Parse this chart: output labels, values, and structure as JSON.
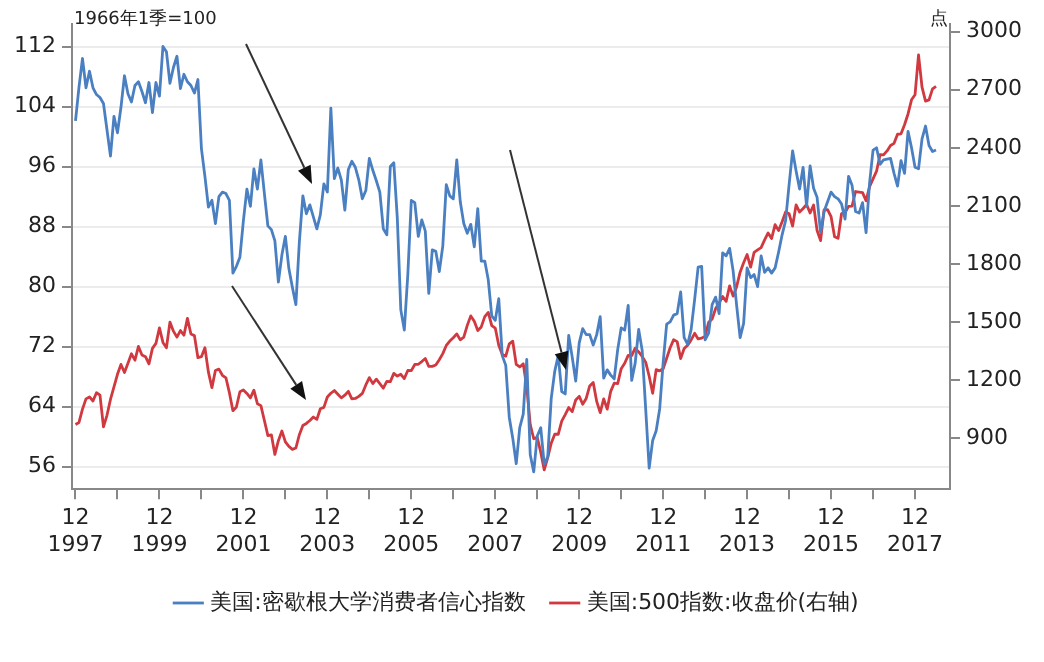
{
  "chart_data": {
    "type": "line",
    "ylabel": "1966年1季=100",
    "y2label": "点",
    "x": [
      "1997-12",
      "1998-01",
      "1998-02",
      "1998-03",
      "1998-04",
      "1998-05",
      "1998-06",
      "1998-07",
      "1998-08",
      "1998-09",
      "1998-10",
      "1998-11",
      "1998-12",
      "1999-01",
      "1999-02",
      "1999-03",
      "1999-04",
      "1999-05",
      "1999-06",
      "1999-07",
      "1999-08",
      "1999-09",
      "1999-10",
      "1999-11",
      "1999-12",
      "2000-01",
      "2000-02",
      "2000-03",
      "2000-04",
      "2000-05",
      "2000-06",
      "2000-07",
      "2000-08",
      "2000-09",
      "2000-10",
      "2000-11",
      "2000-12",
      "2001-01",
      "2001-02",
      "2001-03",
      "2001-04",
      "2001-05",
      "2001-06",
      "2001-07",
      "2001-08",
      "2001-09",
      "2001-10",
      "2001-11",
      "2001-12",
      "2002-01",
      "2002-02",
      "2002-03",
      "2002-04",
      "2002-05",
      "2002-06",
      "2002-07",
      "2002-08",
      "2002-09",
      "2002-10",
      "2002-11",
      "2002-12",
      "2003-01",
      "2003-02",
      "2003-03",
      "2003-04",
      "2003-05",
      "2003-06",
      "2003-07",
      "2003-08",
      "2003-09",
      "2003-10",
      "2003-11",
      "2003-12",
      "2004-01",
      "2004-02",
      "2004-03",
      "2004-04",
      "2004-05",
      "2004-06",
      "2004-07",
      "2004-08",
      "2004-09",
      "2004-10",
      "2004-11",
      "2004-12",
      "2005-01",
      "2005-02",
      "2005-03",
      "2005-04",
      "2005-05",
      "2005-06",
      "2005-07",
      "2005-08",
      "2005-09",
      "2005-10",
      "2005-11",
      "2005-12",
      "2006-01",
      "2006-02",
      "2006-03",
      "2006-04",
      "2006-05",
      "2006-06",
      "2006-07",
      "2006-08",
      "2006-09",
      "2006-10",
      "2006-11",
      "2006-12",
      "2007-01",
      "2007-02",
      "2007-03",
      "2007-04",
      "2007-05",
      "2007-06",
      "2007-07",
      "2007-08",
      "2007-09",
      "2007-10",
      "2007-11",
      "2007-12",
      "2008-01",
      "2008-02",
      "2008-03",
      "2008-04",
      "2008-05",
      "2008-06",
      "2008-07",
      "2008-08",
      "2008-09",
      "2008-10",
      "2008-11",
      "2008-12",
      "2009-01",
      "2009-02",
      "2009-03",
      "2009-04",
      "2009-05",
      "2009-06",
      "2009-07",
      "2009-08",
      "2009-09",
      "2009-10",
      "2009-11",
      "2009-12",
      "2010-01",
      "2010-02",
      "2010-03",
      "2010-04",
      "2010-05",
      "2010-06",
      "2010-07",
      "2010-08",
      "2010-09",
      "2010-10",
      "2010-11",
      "2010-12",
      "2011-01",
      "2011-02",
      "2011-03",
      "2011-04",
      "2011-05",
      "2011-06",
      "2011-07",
      "2011-08",
      "2011-09",
      "2011-10",
      "2011-11",
      "2011-12",
      "2012-01",
      "2012-02",
      "2012-03",
      "2012-04",
      "2012-05",
      "2012-06",
      "2012-07",
      "2012-08",
      "2012-09",
      "2012-10",
      "2012-11",
      "2012-12",
      "2013-01",
      "2013-02",
      "2013-03",
      "2013-04",
      "2013-05",
      "2013-06",
      "2013-07",
      "2013-08",
      "2013-09",
      "2013-10",
      "2013-11",
      "2013-12",
      "2014-01",
      "2014-02",
      "2014-03",
      "2014-04",
      "2014-05",
      "2014-06",
      "2014-07",
      "2014-08",
      "2014-09",
      "2014-10",
      "2014-11",
      "2014-12",
      "2015-01",
      "2015-02",
      "2015-03",
      "2015-04",
      "2015-05",
      "2015-06",
      "2015-07",
      "2015-08",
      "2015-09",
      "2015-10",
      "2015-11",
      "2015-12",
      "2016-01",
      "2016-02",
      "2016-03",
      "2016-04",
      "2016-05",
      "2016-06",
      "2016-07",
      "2016-08",
      "2016-09",
      "2016-10",
      "2016-11",
      "2016-12",
      "2017-01",
      "2017-02",
      "2017-03",
      "2017-04",
      "2017-05",
      "2017-06",
      "2017-07",
      "2017-08",
      "2017-09",
      "2017-10",
      "2017-11",
      "2017-12",
      "2018-01",
      "2018-02",
      "2018-03",
      "2018-04",
      "2018-05",
      "2018-06"
    ],
    "series": [
      {
        "name": "美国:密歇根大学消费者信心指数",
        "color": "#4a7fc1",
        "values": [
          102.1,
          106.6,
          110.4,
          106.5,
          108.7,
          106.5,
          105.6,
          105.2,
          104.4,
          100.9,
          97.4,
          102.7,
          100.5,
          103.9,
          108.1,
          105.7,
          104.6,
          106.8,
          107.3,
          106.0,
          104.5,
          107.2,
          103.2,
          107.2,
          105.4,
          112.0,
          111.3,
          107.1,
          109.2,
          110.7,
          106.4,
          108.3,
          107.3,
          106.8,
          105.8,
          107.6,
          98.4,
          94.7,
          90.6,
          91.5,
          88.4,
          92.0,
          92.6,
          92.4,
          91.5,
          81.8,
          82.7,
          83.9,
          88.8,
          93.0,
          90.7,
          95.7,
          93.0,
          96.9,
          92.4,
          88.1,
          87.6,
          86.1,
          80.6,
          84.2,
          86.7,
          82.4,
          79.9,
          77.6,
          86.0,
          92.1,
          89.7,
          90.9,
          89.3,
          87.7,
          89.6,
          93.7,
          92.6,
          103.8,
          94.4,
          95.8,
          94.2,
          90.2,
          95.6,
          96.7,
          95.9,
          94.2,
          91.7,
          92.8,
          97.1,
          95.5,
          94.1,
          92.6,
          87.7,
          86.9,
          96.0,
          96.5,
          89.1,
          76.9,
          74.2,
          81.6,
          91.5,
          91.2,
          86.7,
          88.9,
          87.4,
          79.1,
          84.9,
          84.7,
          82.0,
          85.4,
          93.6,
          92.1,
          91.7,
          96.9,
          91.3,
          88.4,
          87.1,
          88.3,
          85.3,
          90.4,
          83.4,
          83.4,
          80.9,
          76.1,
          75.5,
          78.4,
          70.8,
          69.5,
          62.6,
          59.8,
          56.4,
          61.2,
          63.0,
          70.3,
          57.6,
          55.3,
          60.1,
          61.2,
          56.3,
          57.3,
          65.1,
          68.7,
          70.8,
          66.0,
          65.7,
          73.5,
          70.6,
          67.4,
          72.5,
          74.4,
          73.6,
          73.6,
          72.2,
          73.6,
          76.0,
          67.8,
          68.9,
          68.2,
          67.7,
          71.6,
          74.5,
          74.2,
          77.5,
          67.5,
          69.8,
          74.3,
          71.5,
          63.7,
          55.8,
          59.5,
          60.8,
          63.7,
          69.9,
          75.0,
          75.3,
          76.2,
          76.4,
          79.3,
          73.2,
          72.3,
          74.3,
          78.3,
          82.6,
          82.7,
          72.9,
          73.8,
          77.6,
          78.6,
          76.4,
          84.5,
          84.1,
          85.1,
          82.1,
          77.5,
          73.2,
          75.1,
          82.5,
          81.2,
          81.6,
          80.0,
          84.1,
          81.9,
          82.5,
          81.8,
          82.5,
          84.6,
          86.9,
          88.8,
          93.6,
          98.1,
          95.4,
          93.0,
          95.9,
          90.7,
          96.1,
          93.1,
          91.9,
          87.2,
          90.0,
          91.3,
          92.6,
          92.0,
          91.7,
          91.0,
          89.0,
          94.7,
          93.5,
          90.0,
          89.8,
          91.2,
          87.2,
          93.8,
          98.2,
          98.5,
          96.3,
          96.9,
          97.0,
          97.1,
          95.1,
          93.4,
          96.8,
          95.1,
          100.7,
          98.5,
          95.9,
          95.7,
          99.7,
          101.4,
          98.8,
          98.0,
          98.2
        ]
      },
      {
        "name": "美国:500指数:收盘价(右轴)",
        "color": "#d0393f",
        "axis": "y2",
        "values": [
          970,
          980,
          1049,
          1102,
          1112,
          1091,
          1134,
          1121,
          957,
          1017,
          1099,
          1164,
          1229,
          1280,
          1238,
          1286,
          1335,
          1302,
          1373,
          1329,
          1320,
          1283,
          1363,
          1389,
          1469,
          1394,
          1366,
          1499,
          1452,
          1421,
          1455,
          1431,
          1518,
          1437,
          1429,
          1315,
          1320,
          1366,
          1240,
          1160,
          1249,
          1256,
          1224,
          1211,
          1134,
          1041,
          1060,
          1139,
          1148,
          1130,
          1107,
          1147,
          1077,
          1067,
          990,
          912,
          916,
          815,
          886,
          936,
          880,
          856,
          841,
          848,
          917,
          964,
          975,
          990,
          1008,
          996,
          1051,
          1058,
          1112,
          1131,
          1145,
          1126,
          1107,
          1121,
          1141,
          1102,
          1104,
          1115,
          1130,
          1174,
          1212,
          1181,
          1204,
          1181,
          1157,
          1192,
          1191,
          1234,
          1220,
          1229,
          1207,
          1249,
          1248,
          1280,
          1281,
          1295,
          1311,
          1270,
          1270,
          1277,
          1304,
          1336,
          1378,
          1401,
          1418,
          1438,
          1407,
          1421,
          1482,
          1531,
          1503,
          1455,
          1474,
          1527,
          1549,
          1481,
          1468,
          1379,
          1331,
          1323,
          1386,
          1400,
          1280,
          1267,
          1283,
          1165,
          969,
          896,
          903,
          826,
          735,
          798,
          873,
          919,
          919,
          987,
          1021,
          1057,
          1036,
          1096,
          1115,
          1074,
          1104,
          1169,
          1187,
          1089,
          1031,
          1102,
          1049,
          1141,
          1183,
          1181,
          1258,
          1286,
          1327,
          1326,
          1364,
          1345,
          1321,
          1292,
          1219,
          1131,
          1253,
          1247,
          1258,
          1312,
          1366,
          1408,
          1398,
          1310,
          1362,
          1379,
          1407,
          1441,
          1412,
          1416,
          1426,
          1498,
          1515,
          1569,
          1598,
          1631,
          1606,
          1686,
          1633,
          1682,
          1757,
          1806,
          1848,
          1783,
          1859,
          1872,
          1884,
          1924,
          1960,
          1931,
          2003,
          1972,
          2018,
          2068,
          2059,
          1995,
          2105,
          2068,
          2086,
          2107,
          2063,
          2104,
          1972,
          1920,
          2079,
          2080,
          2044,
          1940,
          1932,
          2060,
          2065,
          2097,
          2099,
          2174,
          2171,
          2168,
          2126,
          2199,
          2239,
          2279,
          2364,
          2363,
          2384,
          2412,
          2423,
          2470,
          2472,
          2519,
          2575,
          2648,
          2674,
          2880,
          2714,
          2641,
          2648,
          2705,
          2718
        ]
      }
    ],
    "xlim": [
      "1997-11",
      "2018-10"
    ],
    "xticks": [
      {
        "value": "1997-12",
        "label": "12\n1997"
      },
      {
        "value": "1998-12",
        "label": null
      },
      {
        "value": "1999-12",
        "label": "12\n1999"
      },
      {
        "value": "2000-12",
        "label": null
      },
      {
        "value": "2001-12",
        "label": "12\n2001"
      },
      {
        "value": "2002-12",
        "label": null
      },
      {
        "value": "2003-12",
        "label": "12\n2003"
      },
      {
        "value": "2004-12",
        "label": null
      },
      {
        "value": "2005-12",
        "label": "12\n2005"
      },
      {
        "value": "2006-12",
        "label": null
      },
      {
        "value": "2007-12",
        "label": "12\n2007"
      },
      {
        "value": "2008-12",
        "label": null
      },
      {
        "value": "2009-12",
        "label": "12\n2009"
      },
      {
        "value": "2010-12",
        "label": null
      },
      {
        "value": "2011-12",
        "label": "12\n2011"
      },
      {
        "value": "2012-12",
        "label": null
      },
      {
        "value": "2013-12",
        "label": "12\n2013"
      },
      {
        "value": "2014-12",
        "label": null
      },
      {
        "value": "2015-12",
        "label": "12\n2015"
      },
      {
        "value": "2016-12",
        "label": null
      },
      {
        "value": "2017-12",
        "label": "12\n2017"
      }
    ],
    "ylim": [
      53,
      115
    ],
    "yticks": [
      56,
      64,
      72,
      80,
      88,
      96,
      104,
      112
    ],
    "y2lim": [
      635,
      3040
    ],
    "y2ticks": [
      900,
      1200,
      1500,
      1800,
      2100,
      2400,
      2700,
      3000
    ],
    "grid": "y",
    "legend": "bottom",
    "marker": "none",
    "line_style": "solid"
  }
}
